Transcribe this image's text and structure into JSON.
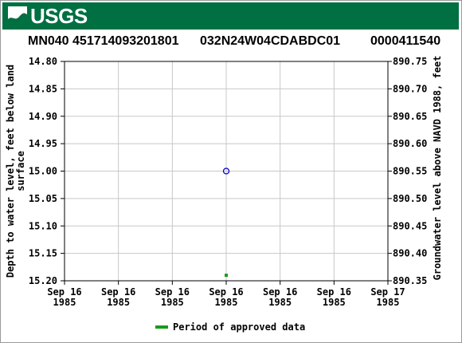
{
  "header": {
    "site_label": "MN040 451714093201801",
    "station_id": "032N24W04CDABDC01",
    "site_number": "0000411540"
  },
  "banner": {
    "logo_text": "USGS",
    "color": "#006f41"
  },
  "legend": {
    "label": "Period of approved data",
    "color": "#1a9a1a"
  },
  "chart_data": {
    "type": "scatter",
    "title": "",
    "ylabel_left": "Depth to water level, feet below land surface",
    "ylabel_right": "Groundwater level above NAVD 1988, feet",
    "y_left_range": [
      15.2,
      14.8
    ],
    "y_left_ticks": [
      "14.80",
      "14.85",
      "14.90",
      "14.95",
      "15.00",
      "15.05",
      "15.10",
      "15.15",
      "15.20"
    ],
    "y_right_ticks": [
      "890.75",
      "890.70",
      "890.65",
      "890.60",
      "890.55",
      "890.50",
      "890.45",
      "890.40",
      "890.35"
    ],
    "x_ticks": [
      [
        "Sep 16",
        "1985"
      ],
      [
        "Sep 16",
        "1985"
      ],
      [
        "Sep 16",
        "1985"
      ],
      [
        "Sep 16",
        "1985"
      ],
      [
        "Sep 16",
        "1985"
      ],
      [
        "Sep 16",
        "1985"
      ],
      [
        "Sep 17",
        "1985"
      ]
    ],
    "grid": true,
    "points": [
      {
        "x_fraction": 0.5,
        "depth": 15.0,
        "marker": "open-circle",
        "color": "#0000cc"
      }
    ],
    "approved_periods": [
      {
        "x_fraction": 0.5,
        "depth": 15.19,
        "color": "#1a9a1a"
      }
    ]
  }
}
